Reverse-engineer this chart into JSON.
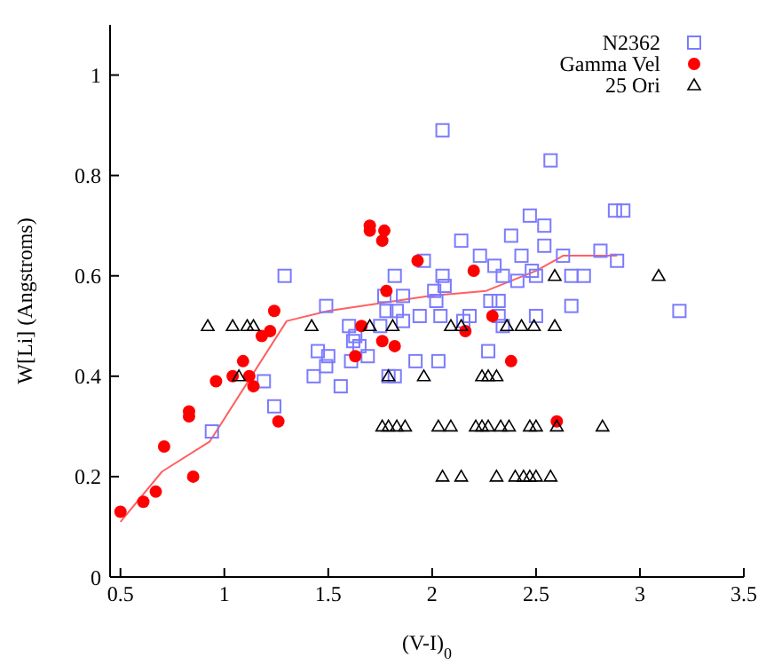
{
  "chart_data": {
    "type": "scatter",
    "xlabel": "(V-I)$_{0}$",
    "ylabel": "W[Li] (Angstroms)",
    "xlim": [
      0.45,
      3.5
    ],
    "ylim": [
      0,
      1.1
    ],
    "xticks": [
      0.5,
      1,
      1.5,
      2,
      2.5,
      3,
      3.5
    ],
    "yticks": [
      0,
      0.2,
      0.4,
      0.6,
      0.8,
      1
    ],
    "legend": "top right",
    "series": [
      {
        "name": "N2362",
        "marker": "square",
        "color": "#7b7bff",
        "x": [
          0.94,
          1.29,
          1.19,
          1.24,
          1.49,
          1.45,
          1.43,
          1.5,
          1.49,
          1.56,
          1.6,
          1.63,
          1.62,
          1.65,
          1.61,
          1.69,
          1.75,
          1.77,
          1.78,
          1.82,
          1.83,
          1.86,
          1.86,
          1.79,
          1.82,
          1.92,
          1.94,
          1.96,
          2.05,
          2.57,
          2.88,
          2.92,
          2.47,
          2.54,
          2.14,
          2.38,
          2.54,
          2.23,
          2.43,
          2.81,
          2.89,
          2.63,
          2.3,
          2.34,
          2.05,
          2.48,
          2.5,
          2.67,
          2.73,
          2.41,
          2.06,
          2.01,
          2.02,
          2.28,
          2.32,
          2.67,
          3.19,
          2.04,
          2.18,
          2.5,
          2.15,
          2.32,
          2.34,
          2.27,
          2.03
        ],
        "values": [
          0.29,
          0.6,
          0.39,
          0.34,
          0.54,
          0.45,
          0.4,
          0.44,
          0.42,
          0.38,
          0.5,
          0.48,
          0.47,
          0.46,
          0.43,
          0.44,
          0.5,
          0.56,
          0.53,
          0.6,
          0.53,
          0.56,
          0.51,
          0.4,
          0.4,
          0.43,
          0.52,
          0.63,
          0.89,
          0.83,
          0.73,
          0.73,
          0.72,
          0.7,
          0.67,
          0.68,
          0.66,
          0.64,
          0.64,
          0.65,
          0.63,
          0.64,
          0.62,
          0.6,
          0.6,
          0.61,
          0.6,
          0.6,
          0.6,
          0.59,
          0.58,
          0.57,
          0.55,
          0.55,
          0.55,
          0.54,
          0.53,
          0.52,
          0.52,
          0.52,
          0.51,
          0.52,
          0.5,
          0.45,
          0.43
        ]
      },
      {
        "name": "Gamma Vel",
        "marker": "circle",
        "color": "#ff0000",
        "x": [
          0.5,
          0.61,
          0.67,
          0.71,
          0.83,
          0.83,
          0.85,
          0.96,
          1.04,
          1.09,
          1.12,
          1.14,
          1.18,
          1.22,
          1.24,
          1.26,
          1.63,
          1.66,
          1.7,
          1.7,
          1.76,
          1.77,
          1.76,
          1.78,
          1.82,
          1.93,
          2.2,
          2.29,
          2.16,
          2.38,
          2.6
        ],
        "values": [
          0.13,
          0.15,
          0.17,
          0.26,
          0.33,
          0.32,
          0.2,
          0.39,
          0.4,
          0.43,
          0.4,
          0.38,
          0.48,
          0.49,
          0.53,
          0.31,
          0.44,
          0.5,
          0.7,
          0.69,
          0.67,
          0.69,
          0.47,
          0.57,
          0.46,
          0.63,
          0.61,
          0.52,
          0.49,
          0.43,
          0.31
        ]
      },
      {
        "name": "25 Ori",
        "marker": "triangle",
        "color": "#000000",
        "x": [
          0.92,
          1.04,
          1.11,
          1.14,
          1.42,
          1.7,
          1.81,
          2.09,
          2.14,
          2.36,
          2.43,
          2.49,
          2.59,
          1.07,
          1.79,
          1.96,
          2.24,
          2.27,
          2.31,
          1.76,
          1.79,
          1.83,
          1.87,
          2.03,
          2.09,
          2.21,
          2.24,
          2.27,
          2.33,
          2.37,
          2.47,
          2.5,
          2.6,
          2.82,
          2.59,
          3.09,
          2.05,
          2.14,
          2.31,
          2.4,
          2.44,
          2.47,
          2.5,
          2.57
        ],
        "values": [
          0.5,
          0.5,
          0.5,
          0.5,
          0.5,
          0.5,
          0.5,
          0.5,
          0.5,
          0.5,
          0.5,
          0.5,
          0.5,
          0.4,
          0.4,
          0.4,
          0.4,
          0.4,
          0.4,
          0.3,
          0.3,
          0.3,
          0.3,
          0.3,
          0.3,
          0.3,
          0.3,
          0.3,
          0.3,
          0.3,
          0.3,
          0.3,
          0.3,
          0.3,
          0.6,
          0.6,
          0.2,
          0.2,
          0.2,
          0.2,
          0.2,
          0.2,
          0.2,
          0.2
        ]
      },
      {
        "type": "line",
        "marker": "none",
        "color": "#ff6060",
        "x": [
          0.5,
          0.7,
          0.93,
          1.3,
          1.5,
          1.99,
          2.26,
          2.5,
          2.63,
          2.89
        ],
        "values": [
          0.11,
          0.21,
          0.27,
          0.51,
          0.53,
          0.56,
          0.57,
          0.61,
          0.64,
          0.64
        ]
      }
    ]
  }
}
